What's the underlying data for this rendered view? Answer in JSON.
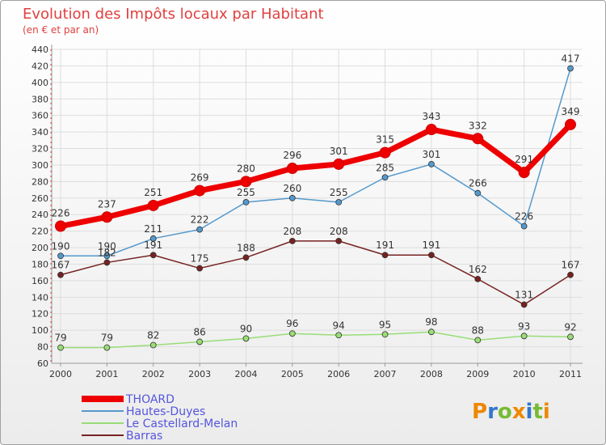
{
  "chart_data": {
    "type": "line",
    "title": "Evolution des Impôts locaux par Habitant",
    "subtitle": "(en € et par an)",
    "x": [
      "2000",
      "2001",
      "2002",
      "2003",
      "2004",
      "2005",
      "2006",
      "2007",
      "2008",
      "2009",
      "2010",
      "2011"
    ],
    "ylim": [
      60,
      440
    ],
    "yticks": [
      60,
      80,
      100,
      120,
      140,
      160,
      180,
      200,
      220,
      240,
      260,
      280,
      300,
      320,
      340,
      360,
      380,
      400,
      420,
      440
    ],
    "grid": true,
    "legend": "bottom-left",
    "series": [
      {
        "name": "THOARD",
        "color": "#ee0000",
        "values": [
          226,
          237,
          251,
          269,
          280,
          296,
          301,
          315,
          343,
          332,
          291,
          349
        ]
      },
      {
        "name": "Hautes-Duyes",
        "color": "#5599cc",
        "values": [
          190,
          190,
          211,
          222,
          255,
          260,
          255,
          285,
          301,
          266,
          226,
          417
        ]
      },
      {
        "name": "Le Castellard-Melan",
        "color": "#99dd77",
        "values": [
          79,
          79,
          82,
          86,
          90,
          96,
          94,
          95,
          98,
          88,
          93,
          92
        ]
      },
      {
        "name": "Barras",
        "color": "#772222",
        "values": [
          167,
          182,
          191,
          175,
          188,
          208,
          208,
          191,
          191,
          162,
          131,
          167
        ]
      }
    ]
  },
  "brand": {
    "letters": [
      "P",
      "r",
      "o",
      "x",
      "i",
      "t",
      "i"
    ],
    "colors": [
      "#ee8800",
      "#3377cc",
      "#77bb33",
      "#ee8800",
      "#3377cc",
      "#77bb33",
      "#ee8800"
    ]
  }
}
